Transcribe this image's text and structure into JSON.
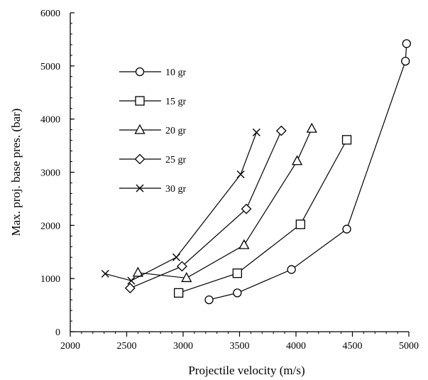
{
  "chart_data": {
    "type": "line",
    "title": "",
    "xlabel": "Projectile velocity (m/s)",
    "ylabel": "Max. proj. base pres. (bar)",
    "xlim": [
      2000,
      5000
    ],
    "ylim": [
      0,
      6000
    ],
    "xticks": [
      2000,
      2500,
      3000,
      3500,
      4000,
      4500,
      5000
    ],
    "yticks": [
      0,
      1000,
      2000,
      3000,
      4000,
      5000,
      6000
    ],
    "grid": false,
    "legend_position": "top-left",
    "series": [
      {
        "name": "10 gr",
        "marker": "circle",
        "x": [
          3230,
          3480,
          3960,
          4450,
          4970,
          4980
        ],
        "y": [
          600,
          730,
          1170,
          1930,
          5090,
          5420
        ]
      },
      {
        "name": "15 gr",
        "marker": "square",
        "x": [
          2960,
          3480,
          4040,
          4450
        ],
        "y": [
          730,
          1100,
          2020,
          3610
        ]
      },
      {
        "name": "20 gr",
        "marker": "triangle",
        "x": [
          2600,
          3030,
          3540,
          4010,
          4140
        ],
        "y": [
          1110,
          1010,
          1630,
          3210,
          3820
        ]
      },
      {
        "name": "25 gr",
        "marker": "diamond",
        "x": [
          2530,
          2990,
          3560,
          3870
        ],
        "y": [
          820,
          1230,
          2310,
          3780
        ]
      },
      {
        "name": "30 gr",
        "marker": "x",
        "x": [
          2310,
          2540,
          2940,
          3510,
          3650
        ],
        "y": [
          1090,
          960,
          1400,
          2960,
          3750
        ]
      }
    ]
  }
}
